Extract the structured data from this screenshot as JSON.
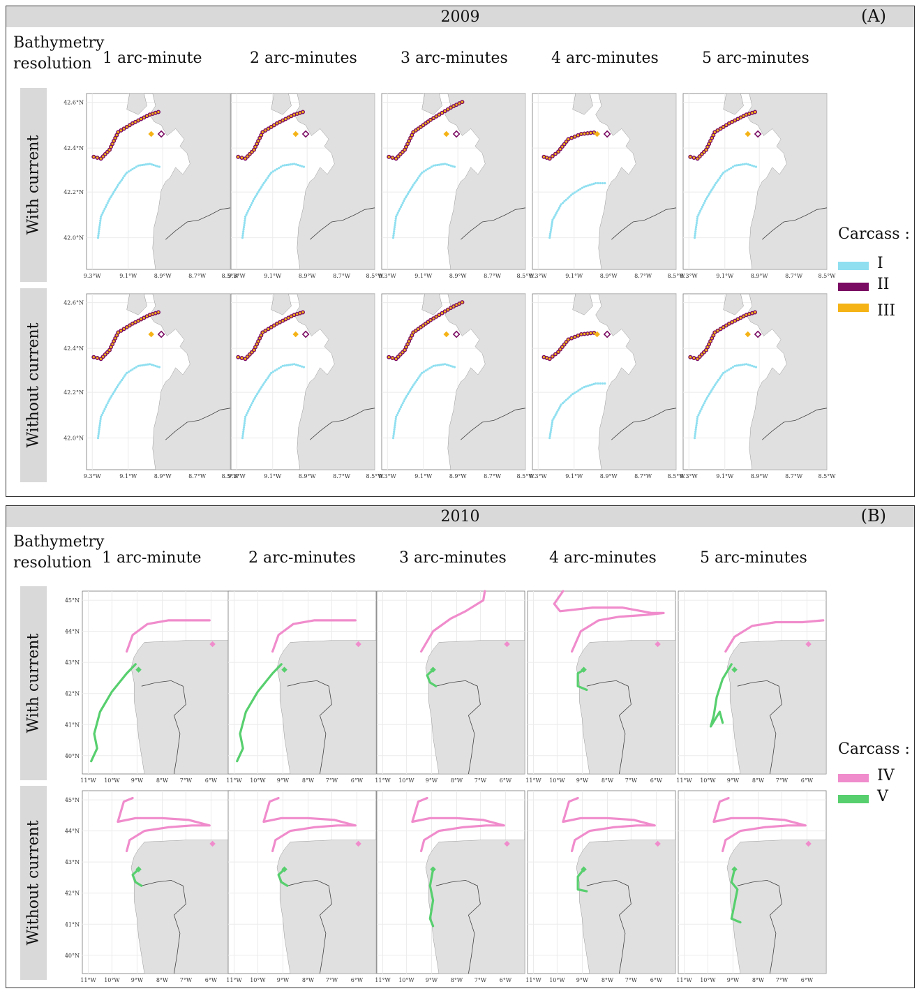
{
  "panels": [
    {
      "year": "2009",
      "letter": "(A)",
      "bathymetry_label_1": "Bathymetry",
      "bathymetry_label_2": "resolution",
      "resolutions": [
        "1 arc-minute",
        "2 arc-minutes",
        "3 arc-minutes",
        "4 arc-minutes",
        "5 arc-minutes"
      ],
      "rows": [
        "With current",
        "Without  current"
      ],
      "legend": {
        "title": "Carcass :",
        "items": [
          {
            "label": "I",
            "color": "#8fdff0"
          },
          {
            "label": "II",
            "color": "#7a0b63"
          },
          {
            "label": "III",
            "color": "#f5b316"
          }
        ]
      },
      "y_ticks": [
        "42.6°N",
        "42.4°N",
        "42.2°N",
        "42.0°N"
      ],
      "x_ticks": [
        "9.3°W",
        "9.1°W",
        "8.9°W",
        "8.7°W",
        "8.5°W"
      ]
    },
    {
      "year": "2010",
      "letter": "(B)",
      "bathymetry_label_1": "Bathymetry",
      "bathymetry_label_2": "resolution",
      "resolutions": [
        "1 arc-minute",
        "2 arc-minutes",
        "3 arc-minutes",
        "4 arc-minutes",
        "5 arc-minutes"
      ],
      "rows": [
        "With current",
        "Without  current"
      ],
      "legend": {
        "title": "Carcass :",
        "items": [
          {
            "label": "IV",
            "color": "#f08ccc"
          },
          {
            "label": "V",
            "color": "#57cf6e"
          }
        ]
      },
      "y_ticks": [
        "45°N",
        "44°N",
        "43°N",
        "42°N",
        "41°N",
        "40°N"
      ],
      "x_ticks": [
        "11°W",
        "10°W",
        "9°W",
        "8°W",
        "7°W",
        "6°W"
      ]
    }
  ],
  "colors": {
    "land": "#e0e0e0",
    "strip": "#d9d9d9",
    "grid": "#ebebeb"
  }
}
